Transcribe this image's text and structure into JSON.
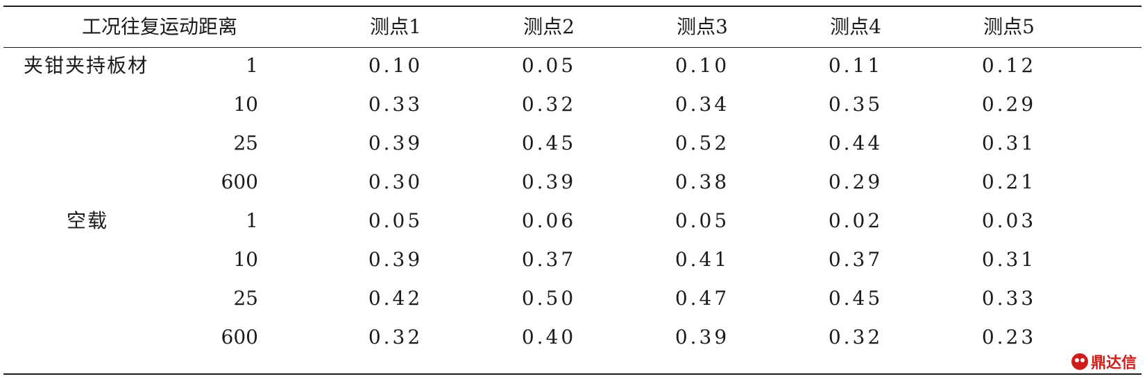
{
  "table": {
    "header": {
      "condition_distance": "工况往复运动距离",
      "points": [
        "测点1",
        "测点2",
        "测点3",
        "测点4",
        "测点5"
      ]
    },
    "groups": [
      {
        "condition": "夹钳夹持板材",
        "rows": [
          {
            "distance": "1",
            "values": [
              "0.10",
              "0.05",
              "0.10",
              "0.11",
              "0.12"
            ]
          },
          {
            "distance": "10",
            "values": [
              "0.33",
              "0.32",
              "0.34",
              "0.35",
              "0.29"
            ]
          },
          {
            "distance": "25",
            "values": [
              "0.39",
              "0.45",
              "0.52",
              "0.44",
              "0.31"
            ]
          },
          {
            "distance": "600",
            "values": [
              "0.30",
              "0.39",
              "0.38",
              "0.29",
              "0.21"
            ]
          }
        ]
      },
      {
        "condition": "空载",
        "rows": [
          {
            "distance": "1",
            "values": [
              "0.05",
              "0.06",
              "0.05",
              "0.02",
              "0.03"
            ]
          },
          {
            "distance": "10",
            "values": [
              "0.39",
              "0.37",
              "0.41",
              "0.37",
              "0.31"
            ]
          },
          {
            "distance": "25",
            "values": [
              "0.42",
              "0.50",
              "0.47",
              "0.45",
              "0.33"
            ]
          },
          {
            "distance": "600",
            "values": [
              "0.32",
              "0.40",
              "0.39",
              "0.32",
              "0.23"
            ]
          }
        ]
      }
    ]
  },
  "watermark": {
    "text": "鼎达信",
    "icon": "logo-face-icon",
    "color": "#cc1f1a"
  }
}
